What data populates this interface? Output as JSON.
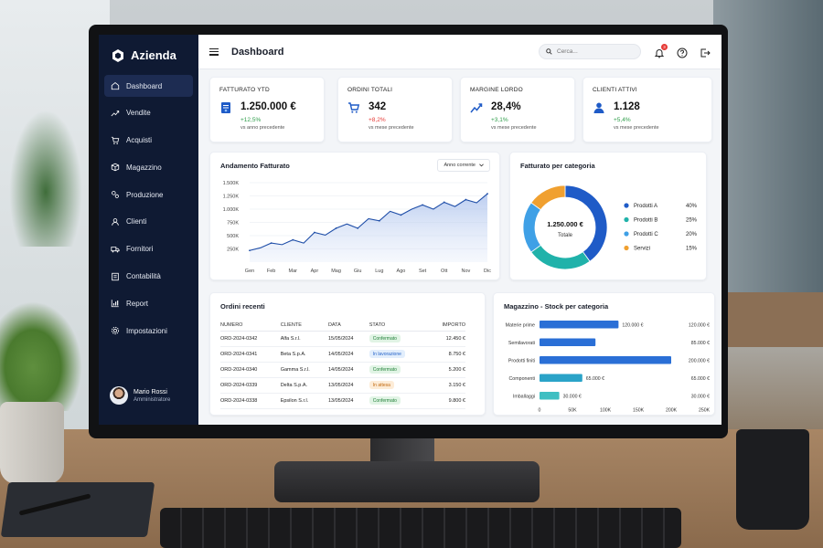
{
  "app": {
    "brand": "Azienda"
  },
  "header": {
    "title": "Dashboard",
    "search_placeholder": "Cerca...",
    "notifications_count": "3"
  },
  "sidebar": {
    "items": [
      {
        "label": "Dashboard",
        "icon": "home-icon",
        "active": true
      },
      {
        "label": "Vendite",
        "icon": "trend-icon"
      },
      {
        "label": "Acquisti",
        "icon": "cart-icon"
      },
      {
        "label": "Magazzino",
        "icon": "box-icon"
      },
      {
        "label": "Produzione",
        "icon": "gears-icon"
      },
      {
        "label": "Clienti",
        "icon": "user-icon"
      },
      {
        "label": "Fornitori",
        "icon": "truck-icon"
      },
      {
        "label": "Contabilità",
        "icon": "ledger-icon"
      },
      {
        "label": "Report",
        "icon": "report-icon"
      },
      {
        "label": "Impostazioni",
        "icon": "gear-icon"
      }
    ],
    "user": {
      "name": "Mario Rossi",
      "role": "Amministratore"
    }
  },
  "kpis": [
    {
      "label": "FATTURATO YTD",
      "value": "1.250.000 €",
      "change": "+12,5%",
      "trend": "pos",
      "sub": "vs anno precedente",
      "icon": "invoice-icon",
      "color": "#1f5bc7"
    },
    {
      "label": "ORDINI TOTALI",
      "value": "342",
      "change": "+8,2%",
      "trend": "neg",
      "sub": "vs mese precedente",
      "icon": "cart-icon",
      "color": "#1f5bc7"
    },
    {
      "label": "MARGINE LORDO",
      "value": "28,4%",
      "change": "+3,1%",
      "trend": "pos",
      "sub": "vs mese precedente",
      "icon": "trend-icon",
      "color": "#1f5bc7"
    },
    {
      "label": "CLIENTI ATTIVI",
      "value": "1.128",
      "change": "+5,4%",
      "trend": "pos",
      "sub": "vs mese precedente",
      "icon": "user-icon",
      "color": "#1f5bc7"
    }
  ],
  "revenue_card": {
    "title": "Andamento Fatturato",
    "filter": "Anno corrente"
  },
  "category_card": {
    "title": "Fatturato per categoria",
    "center_value": "1.250.000 €",
    "center_label": "Totale"
  },
  "orders_card": {
    "title": "Ordini recenti",
    "columns": [
      "NUMERO",
      "CLIENTE",
      "DATA",
      "STATO",
      "IMPORTO"
    ],
    "rows": [
      {
        "numero": "ORD-2024-0342",
        "cliente": "Alfa S.r.l.",
        "data": "15/05/2024",
        "stato": "Confermato",
        "tipo": "ok",
        "importo": "12.450 €"
      },
      {
        "numero": "ORD-2024-0341",
        "cliente": "Beta S.p.A.",
        "data": "14/05/2024",
        "stato": "In lavorazione",
        "tipo": "work",
        "importo": "8.750 €"
      },
      {
        "numero": "ORD-2024-0340",
        "cliente": "Gamma S.r.l.",
        "data": "14/05/2024",
        "stato": "Confermato",
        "tipo": "ok",
        "importo": "5.200 €"
      },
      {
        "numero": "ORD-2024-0339",
        "cliente": "Delta S.p.A.",
        "data": "13/05/2024",
        "stato": "In attesa",
        "tipo": "wait",
        "importo": "3.150 €"
      },
      {
        "numero": "ORD-2024-0338",
        "cliente": "Epsilon S.r.l.",
        "data": "13/05/2024",
        "stato": "Confermato",
        "tipo": "ok",
        "importo": "9.800 €"
      }
    ]
  },
  "stock_card": {
    "title": "Magazzino - Stock per categoria"
  },
  "chart_data": [
    {
      "type": "area",
      "categories": [
        "Gen",
        "Feb",
        "Mar",
        "Apr",
        "Mag",
        "Giu",
        "Lug",
        "Ago",
        "Set",
        "Ott",
        "Nov",
        "Dic"
      ],
      "y_ticks": [
        "250K",
        "500K",
        "750K",
        "1.000K",
        "1.250K",
        "1.500K"
      ],
      "ylim": [
        0,
        1500
      ],
      "x_values": [
        0,
        0.5,
        1,
        1.5,
        2,
        2.5,
        3,
        3.5,
        4,
        4.5,
        5,
        5.5,
        6,
        6.5,
        7,
        7.5,
        8,
        8.5,
        9,
        9.5,
        10,
        10.5,
        11
      ],
      "values": [
        220,
        270,
        360,
        330,
        420,
        360,
        560,
        510,
        640,
        720,
        640,
        820,
        780,
        960,
        890,
        1000,
        1080,
        1000,
        1130,
        1050,
        1180,
        1120,
        1290
      ],
      "color": "#1f4ea8"
    },
    {
      "type": "pie",
      "style": "donut",
      "series": [
        {
          "name": "Prodotti A",
          "value": 40,
          "label": "40%",
          "color": "#1f5bc7"
        },
        {
          "name": "Prodotti B",
          "value": 25,
          "label": "25%",
          "color": "#20b2aa"
        },
        {
          "name": "Prodotti C",
          "value": 20,
          "label": "20%",
          "color": "#3fa0e6"
        },
        {
          "name": "Servizi",
          "value": 15,
          "label": "15%",
          "color": "#f0a030"
        }
      ]
    },
    {
      "type": "bar",
      "orientation": "horizontal",
      "categories": [
        "Materie prime",
        "Semilavorati",
        "Prodotti finiti",
        "Componenti",
        "Imballaggi"
      ],
      "values": [
        120000,
        85000,
        200000,
        65000,
        30000
      ],
      "bar_labels": [
        "120.000 €",
        "",
        "",
        "65.000 €",
        "30.000 €"
      ],
      "right_labels": [
        "120.000 €",
        "85.000 €",
        "200.000 €",
        "65.000 €",
        "30.000 €"
      ],
      "x_ticks": [
        "0",
        "50K",
        "100K",
        "150K",
        "200K",
        "250K"
      ],
      "xlim": [
        0,
        250000
      ],
      "colors": [
        "#2a6fd6",
        "#2a6fd6",
        "#2a6fd6",
        "#2aa3c8",
        "#3fbfc2"
      ]
    }
  ]
}
